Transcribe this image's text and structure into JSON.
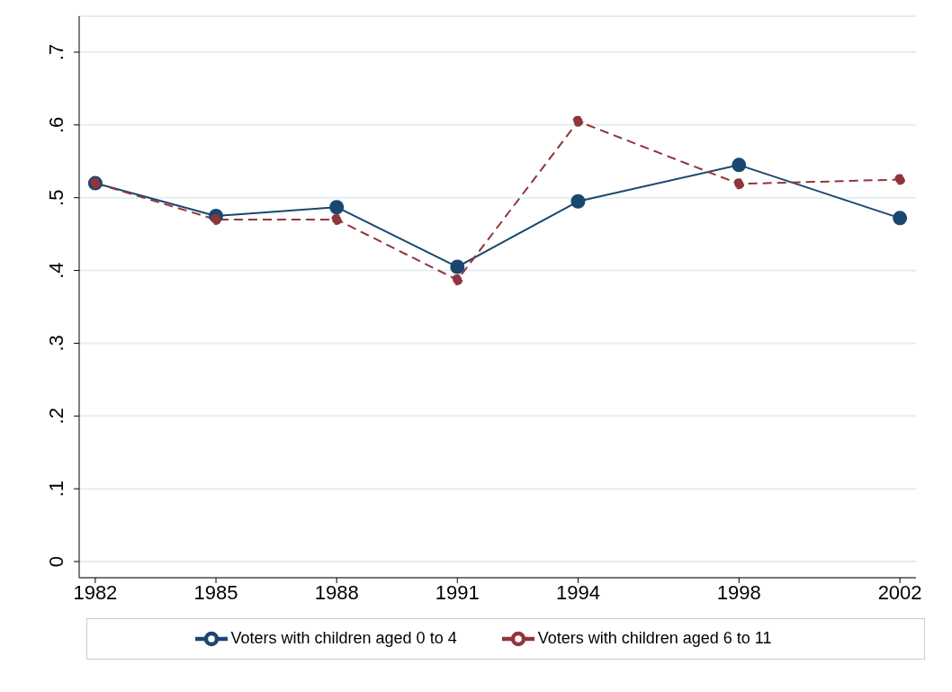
{
  "chart_data": {
    "type": "line",
    "x": [
      1982,
      1985,
      1988,
      1991,
      1994,
      1998,
      2002
    ],
    "series": [
      {
        "name": "Voters with children aged 0 to 4",
        "color": "#1a476f",
        "values": [
          0.52,
          0.475,
          0.487,
          0.405,
          0.495,
          0.545,
          0.472
        ],
        "line_style": "solid"
      },
      {
        "name": "Voters with children aged 6 to 11",
        "color": "#90353b",
        "values": [
          0.52,
          0.47,
          0.47,
          0.387,
          0.605,
          0.519,
          0.525
        ],
        "line_style": "dashed"
      }
    ],
    "xlim": [
      1981.6,
      2002.4
    ],
    "xticks": [
      1982,
      1985,
      1988,
      1991,
      1994,
      1998,
      2002
    ],
    "ylim": [
      0,
      0.7
    ],
    "yticks": [
      0,
      {
        "value": 0.1,
        "label": ".1"
      },
      {
        "value": 0.2,
        "label": ".2"
      },
      {
        "value": 0.3,
        "label": ".3"
      },
      {
        "value": 0.4,
        "label": ".4"
      },
      {
        "value": 0.5,
        "label": ".5"
      },
      {
        "value": 0.6,
        "label": ".6"
      },
      {
        "value": 0.7,
        "label": ".7"
      }
    ],
    "grid": "y",
    "legend": "bottom",
    "marker": "circle"
  }
}
